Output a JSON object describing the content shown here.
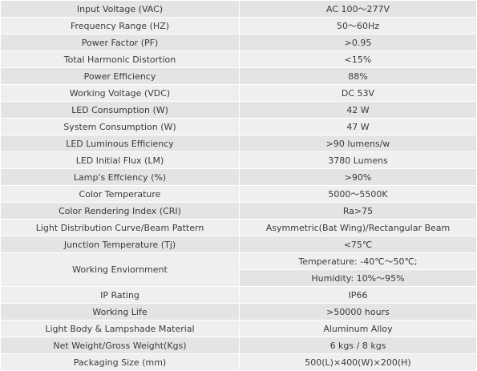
{
  "table": {
    "rows": [
      [
        "Input Voltage (VAC)",
        "AC 100～277V"
      ],
      [
        "Frequency Range (HZ)",
        "50～60Hz"
      ],
      [
        "Power Factor (PF)",
        ">0.95"
      ],
      [
        "Total Harmonic Distortion",
        "<15%"
      ],
      [
        "Power Efficiency",
        "88%"
      ],
      [
        "Working Voltage (VDC)",
        "DC 53V"
      ],
      [
        "LED Consumption (W)",
        "42 W"
      ],
      [
        "System Consumption (W)",
        "47 W"
      ],
      [
        "LED Luminous Efficiency",
        ">90 lumens/w"
      ],
      [
        "LED Initial Flux (LM)",
        "3780 Lumens"
      ],
      [
        "Lamp's Effciency (%)",
        ">90%"
      ],
      [
        "Color Temperature",
        "5000～5500K"
      ],
      [
        "Color Rendering Index (CRI)",
        "Ra>75"
      ],
      [
        "Light Distribution Curve/Beam Pattern",
        "Asymmetric(Bat Wing)/Rectangular Beam"
      ],
      [
        "Junction Temperature (Tj)",
        "<75℃"
      ],
      [
        "Working Enviornment",
        "Temperature: -40℃～50℃;",
        "Humidity: 10%～95%"
      ],
      [
        "IP Rating",
        "IP66"
      ],
      [
        "Working Life",
        ">50000 hours"
      ],
      [
        "Light Body & Lampshade Material",
        "Aluminum Alloy"
      ],
      [
        "Net Weight/Gross Weight(Kgs)",
        "6 kgs / 8 kgs"
      ],
      [
        "Packaging Size (mm)",
        "500(L)×400(W)×200(H)"
      ]
    ]
  }
}
